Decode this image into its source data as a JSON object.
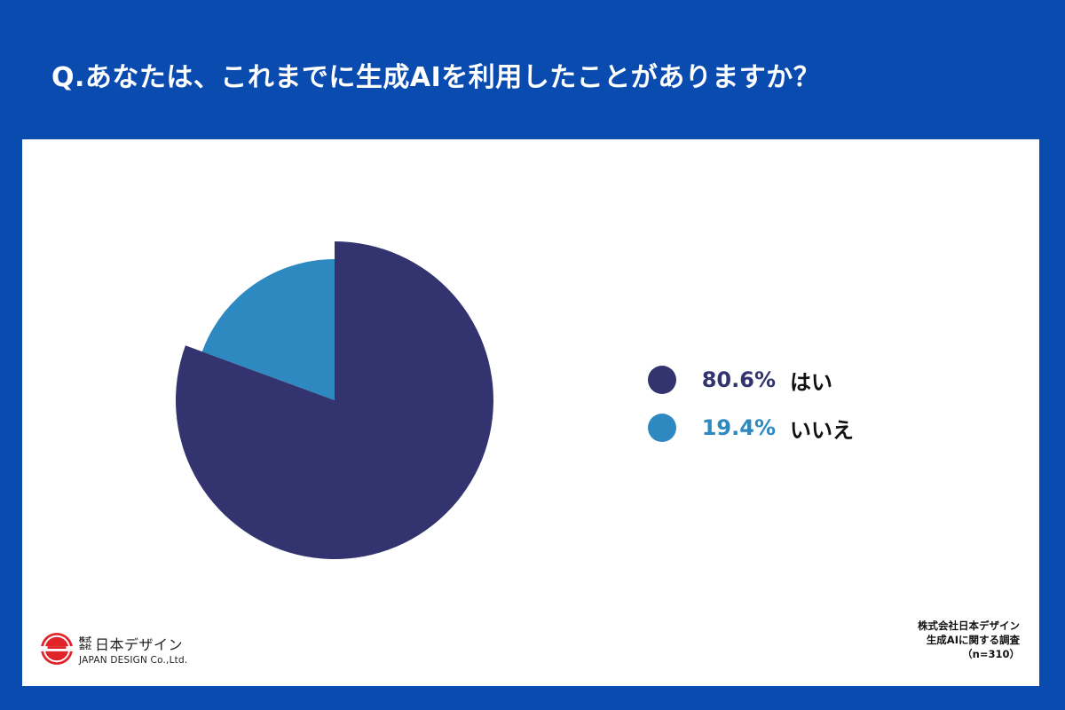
{
  "header": {
    "title": "Q.あなたは、これまでに生成AIを利用したことがありますか？"
  },
  "colors": {
    "background": "#0a4bb0",
    "panel": "#ffffff",
    "yes": "#33336f",
    "no": "#2d89bf"
  },
  "legend": {
    "items": [
      {
        "percent": "80.6%",
        "label": "はい",
        "color": "#33336f"
      },
      {
        "percent": "19.4%",
        "label": "いいえ",
        "color": "#2d89bf"
      }
    ]
  },
  "footer": {
    "logo": {
      "kabushiki": "株式会社",
      "name": "日本デザイン",
      "english": "JAPAN DESIGN Co.,Ltd."
    },
    "source": {
      "line1": "株式会社日本デザイン",
      "line2": "生成AIに関する調査",
      "line3": "（n=310）"
    }
  },
  "chart_data": {
    "type": "pie",
    "title": "Q.あなたは、これまでに生成AIを利用したことがありますか？",
    "categories": [
      "はい",
      "いいえ"
    ],
    "values": [
      80.6,
      19.4
    ],
    "unit": "%",
    "colors": [
      "#33336f",
      "#2d89bf"
    ],
    "legend_position": "right",
    "sample_size": "n=310",
    "note": "Larger slice (はい) rendered with larger radius"
  }
}
